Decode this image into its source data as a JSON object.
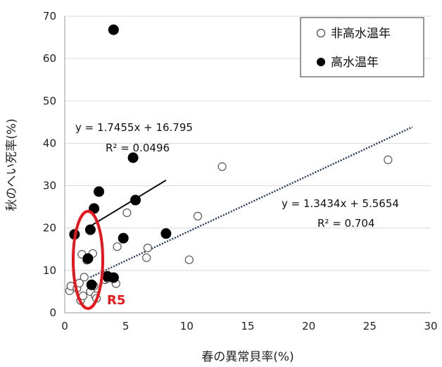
{
  "chart_data": {
    "type": "scatter",
    "xlabel": "春の異常貝率(%)",
    "ylabel": "秋のへい死率(%)",
    "xlim": [
      0,
      30
    ],
    "ylim": [
      0,
      70
    ],
    "xticks": [
      "0",
      "5",
      "10",
      "15",
      "20",
      "25",
      "30"
    ],
    "yticks": [
      "0",
      "10",
      "20",
      "30",
      "40",
      "50",
      "60",
      "70"
    ],
    "grid": "horizontal",
    "legend_position": "top-right",
    "series": [
      {
        "name": "非高水温年",
        "marker": "open-circle",
        "points": [
          {
            "x": 0.4,
            "y": 5.2
          },
          {
            "x": 0.5,
            "y": 6.3
          },
          {
            "x": 1.0,
            "y": 5.8
          },
          {
            "x": 1.2,
            "y": 7.0
          },
          {
            "x": 1.3,
            "y": 2.9
          },
          {
            "x": 1.4,
            "y": 13.8
          },
          {
            "x": 1.5,
            "y": 4.0
          },
          {
            "x": 1.6,
            "y": 8.4
          },
          {
            "x": 1.8,
            "y": 12.4
          },
          {
            "x": 2.1,
            "y": 5.0
          },
          {
            "x": 2.3,
            "y": 14.0
          },
          {
            "x": 2.4,
            "y": 6.3
          },
          {
            "x": 2.5,
            "y": 4.0
          },
          {
            "x": 2.6,
            "y": 3.4
          },
          {
            "x": 3.3,
            "y": 7.8
          },
          {
            "x": 3.5,
            "y": 8.1
          },
          {
            "x": 4.2,
            "y": 6.9
          },
          {
            "x": 4.3,
            "y": 15.6
          },
          {
            "x": 5.1,
            "y": 23.6
          },
          {
            "x": 6.7,
            "y": 13.0
          },
          {
            "x": 6.8,
            "y": 15.3
          },
          {
            "x": 10.2,
            "y": 12.5
          },
          {
            "x": 10.9,
            "y": 22.8
          },
          {
            "x": 12.9,
            "y": 34.5
          },
          {
            "x": 26.5,
            "y": 36.1
          }
        ],
        "trendline": {
          "style": "dotted",
          "x_range": [
            2.1,
            28.5
          ],
          "equation": "y = 1.3434x + 5.5654",
          "r2": "R² = 0.704"
        }
      },
      {
        "name": "高水温年",
        "marker": "filled-circle",
        "points": [
          {
            "x": 0.8,
            "y": 18.5
          },
          {
            "x": 1.9,
            "y": 12.8
          },
          {
            "x": 2.1,
            "y": 19.6
          },
          {
            "x": 2.2,
            "y": 6.6
          },
          {
            "x": 2.4,
            "y": 24.6
          },
          {
            "x": 2.8,
            "y": 28.6
          },
          {
            "x": 3.5,
            "y": 8.6
          },
          {
            "x": 4.0,
            "y": 8.3
          },
          {
            "x": 4.0,
            "y": 66.8
          },
          {
            "x": 4.8,
            "y": 17.6
          },
          {
            "x": 5.6,
            "y": 36.6
          },
          {
            "x": 5.8,
            "y": 26.6
          },
          {
            "x": 8.3,
            "y": 18.7
          }
        ],
        "trendline": {
          "style": "solid",
          "x_range": [
            1.8,
            8.3
          ],
          "equation": "y = 1.7455x + 16.795",
          "r2": "R² = 0.0496"
        }
      }
    ],
    "annotations": [
      {
        "label": "R5",
        "color": "#e8151b",
        "shape": "ellipse",
        "x_range": [
          1.2,
          2.8
        ],
        "y_range": [
          0.5,
          23
        ]
      }
    ]
  }
}
